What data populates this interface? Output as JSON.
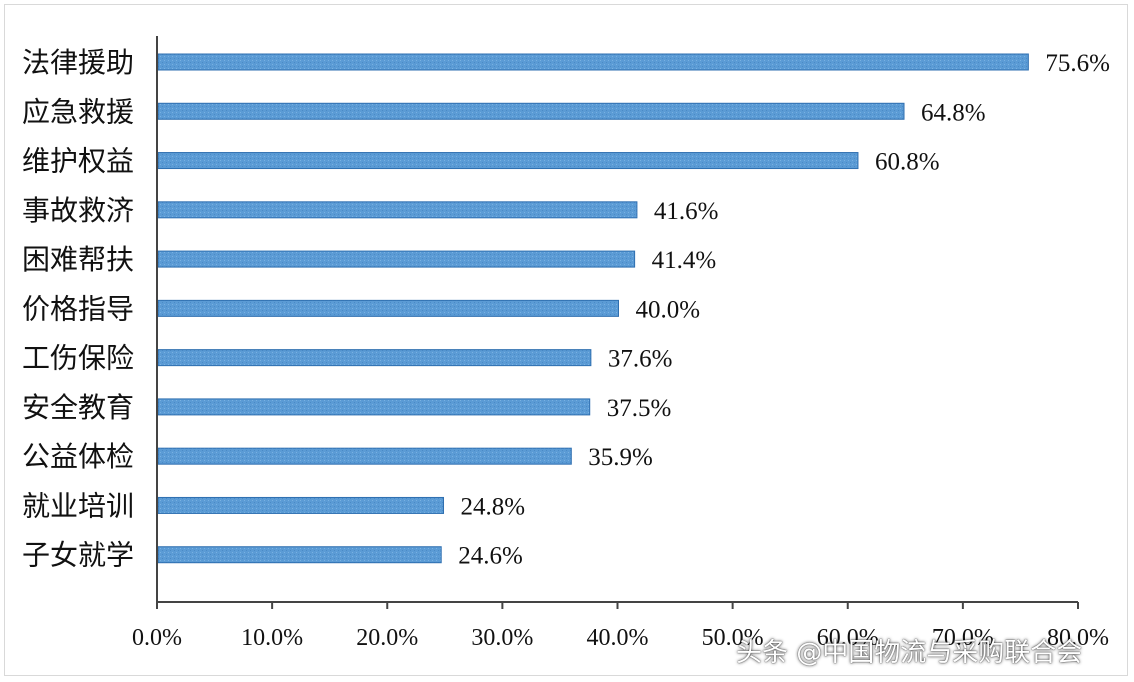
{
  "chart_data": {
    "type": "bar",
    "orientation": "horizontal",
    "categories": [
      "法律援助",
      "应急救援",
      "维护权益",
      "事故救济",
      "困难帮扶",
      "价格指导",
      "工伤保险",
      "安全教育",
      "公益体检",
      "就业培训",
      "子女就学"
    ],
    "values": [
      75.6,
      64.8,
      60.8,
      41.6,
      41.4,
      40.0,
      37.6,
      37.5,
      35.9,
      24.8,
      24.6
    ],
    "value_labels": [
      "75.6%",
      "64.8%",
      "60.8%",
      "41.6%",
      "41.4%",
      "40.0%",
      "37.6%",
      "37.5%",
      "35.9%",
      "24.8%",
      "24.6%"
    ],
    "xlim": [
      0,
      80
    ],
    "x_ticks": [
      0,
      10,
      20,
      30,
      40,
      50,
      60,
      70,
      80
    ],
    "x_tick_labels": [
      "0.0%",
      "10.0%",
      "20.0%",
      "30.0%",
      "40.0%",
      "50.0%",
      "60.0%",
      "70.0%",
      "80.0%"
    ],
    "title": "",
    "xlabel": "",
    "ylabel": "",
    "grid": false,
    "legend": "none",
    "bar_color": "#5b9bd5",
    "bar_edge_color": "#2f6fb0"
  },
  "watermark": {
    "text": "头条 @中国物流与采购联合会"
  }
}
